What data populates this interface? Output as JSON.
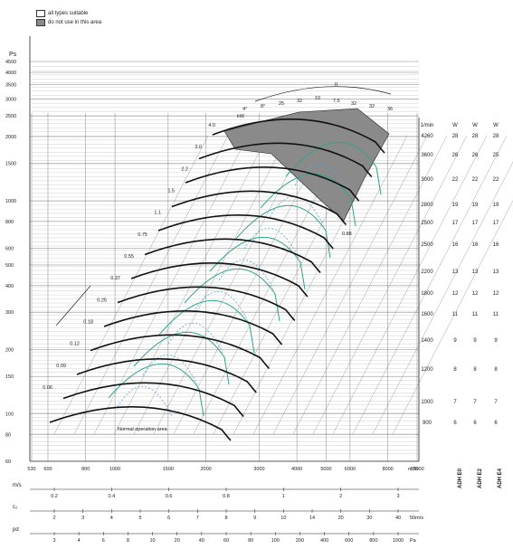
{
  "legend": {
    "suitable": "all types suitable",
    "not_use": "do not use in this area",
    "suitable_color": "#ffffff",
    "not_use_color": "#8a8a8a"
  },
  "colors": {
    "curve": "#111111",
    "green": "#2fa58a",
    "blue": "#5aa6d8",
    "grid": "#555555"
  },
  "chart_data": {
    "type": "line",
    "y_axis": {
      "label": "Ps",
      "scale": "log",
      "ticks": [
        "4500",
        "4000",
        "3500",
        "3000",
        "2500",
        "2000",
        "1500",
        "1000",
        "800",
        "600",
        "500",
        "400",
        "300",
        "200",
        "150",
        "100",
        "80",
        "60"
      ]
    },
    "x_axis": {
      "label": "m³/h",
      "scale": "log",
      "ticks": [
        "530",
        "600",
        "800",
        "1000",
        "1500",
        "2000",
        "3000",
        "4000",
        "5000",
        "6000",
        "8000",
        "10000"
      ]
    },
    "extra_axes": [
      {
        "label": "m/s",
        "ticks": [
          "0.2",
          "0.4",
          "0.6",
          "0.8",
          "1",
          "2",
          "3"
        ]
      },
      {
        "label": "c₂",
        "unit": "50m/s",
        "ticks": [
          "2",
          "3",
          "4",
          "5",
          "6",
          "7",
          "8",
          "9",
          "10",
          "14",
          "20",
          "30",
          "40"
        ]
      },
      {
        "label": "pd",
        "unit": "Pa",
        "ticks": [
          "3",
          "4",
          "6",
          "8",
          "10",
          "20",
          "40",
          "60",
          "80",
          "100",
          "200",
          "400",
          "600",
          "800",
          "1000"
        ]
      }
    ],
    "kw_label": "kW",
    "kw_values": [
      "4.0",
      "3.0",
      "2.2",
      "1.5",
      "1.1",
      "0.75",
      "0.55",
      "0.37",
      "0.25",
      "0.18",
      "0.12",
      "0.09",
      "0.06"
    ],
    "rpm_header": [
      "1/min",
      "W",
      "W",
      "W"
    ],
    "rpm_rows": [
      [
        "4260",
        "28",
        "28",
        "28"
      ],
      [
        "3600",
        "26",
        "26",
        "25"
      ],
      [
        "3000",
        "22",
        "22",
        "22"
      ],
      [
        "2800",
        "19",
        "19",
        "19"
      ],
      [
        "2500",
        "17",
        "17",
        "17"
      ],
      [
        "2500",
        "16",
        "16",
        "16"
      ],
      [
        "2200",
        "13",
        "13",
        "13"
      ],
      [
        "1800",
        "12",
        "12",
        "12"
      ],
      [
        "1600",
        "11",
        "11",
        "11"
      ],
      [
        "1400",
        "9",
        "9",
        "9"
      ],
      [
        "1200",
        "8",
        "8",
        "8"
      ],
      [
        "1000",
        "7",
        "7",
        "7"
      ],
      [
        "900",
        "6",
        "6",
        "6"
      ]
    ],
    "fan_types": [
      "ADH E0",
      "ADH E2",
      "ADH E4"
    ],
    "angle_labels": [
      "4°",
      "8°",
      "25",
      "32",
      "10",
      "7.5",
      "32",
      "32",
      "36"
    ],
    "annotations": {
      "normal": "Normal operation area",
      "eff": "0.88",
      "n": "n"
    },
    "curves_count": 13
  }
}
